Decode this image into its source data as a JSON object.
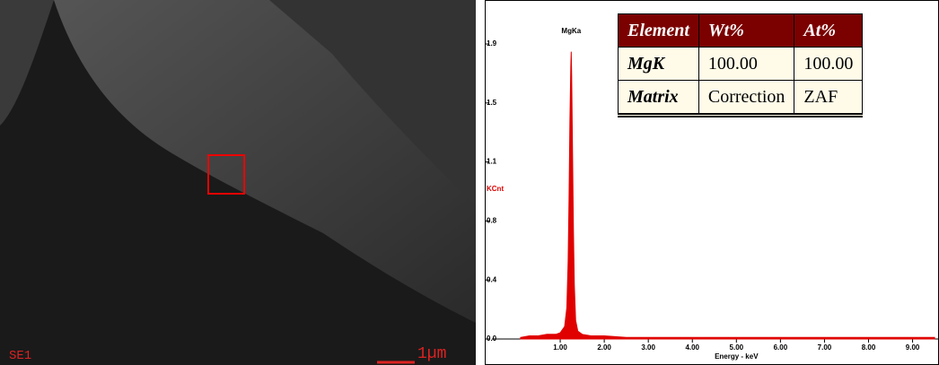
{
  "sem_image": {
    "label": "SE1",
    "scale_bar": "1µm"
  },
  "table": {
    "header": [
      "Element",
      "Wt%",
      "At%"
    ],
    "rows": [
      [
        "MgK",
        "100.00",
        "100.00"
      ],
      [
        "Matrix",
        "Correction",
        "ZAF"
      ]
    ]
  },
  "chart_data": {
    "type": "area",
    "color": "#e00000",
    "xlabel": "Energy - keV",
    "ylabel": "KCnt",
    "annotations": [
      {
        "text": "MgKa",
        "x": 1.25,
        "y": 1.85
      }
    ],
    "x": [
      0.1,
      0.3,
      0.5,
      0.7,
      0.9,
      1.0,
      1.1,
      1.15,
      1.18,
      1.2,
      1.22,
      1.24,
      1.25,
      1.26,
      1.28,
      1.3,
      1.32,
      1.35,
      1.4,
      1.5,
      1.7,
      2.0,
      2.5,
      3.0,
      3.5,
      4.0,
      4.5,
      5.0,
      5.5,
      6.0,
      6.5,
      7.0,
      7.5,
      8.0,
      8.5,
      9.0,
      9.5
    ],
    "values": [
      0.01,
      0.02,
      0.02,
      0.03,
      0.03,
      0.04,
      0.08,
      0.2,
      0.5,
      0.9,
      1.4,
      1.75,
      1.85,
      1.7,
      1.2,
      0.7,
      0.35,
      0.12,
      0.05,
      0.03,
      0.02,
      0.02,
      0.01,
      0.01,
      0.01,
      0.01,
      0.01,
      0.01,
      0.01,
      0.01,
      0.01,
      0.01,
      0.01,
      0.01,
      0.01,
      0.01,
      0.01
    ],
    "xlim": [
      -0.55,
      9.6
    ],
    "xticks": [
      {
        "value": 1,
        "label": "1.00"
      },
      {
        "value": 2,
        "label": "2.00"
      },
      {
        "value": 3,
        "label": "3.00"
      },
      {
        "value": 4,
        "label": "4.00"
      },
      {
        "value": 5,
        "label": "5.00"
      },
      {
        "value": 6,
        "label": "6.00"
      },
      {
        "value": 7,
        "label": "7.00"
      },
      {
        "value": 8,
        "label": "8.00"
      },
      {
        "value": 9,
        "label": "9.00"
      }
    ],
    "ylim": [
      0,
      1.9
    ],
    "yticks": [
      {
        "value": 0,
        "label": "0.0"
      },
      {
        "value": 0.38,
        "label": "0.4"
      },
      {
        "value": 0.76,
        "label": "0.8"
      },
      {
        "value": 1.14,
        "label": "1.1"
      },
      {
        "value": 1.52,
        "label": "1.5"
      },
      {
        "value": 1.9,
        "label": "1.9"
      }
    ]
  }
}
